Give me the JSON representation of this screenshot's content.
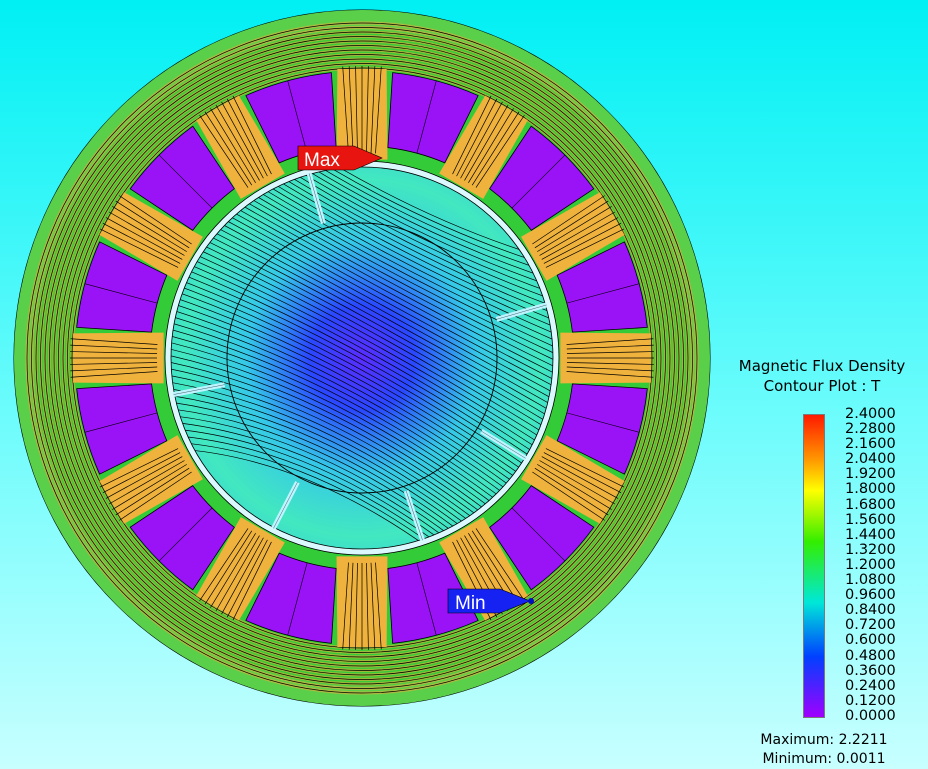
{
  "legend": {
    "title_line1": "Magnetic Flux Density",
    "title_line2": "Contour Plot : T",
    "ticks": [
      "2.4000",
      "2.2800",
      "2.1600",
      "2.0400",
      "1.9200",
      "1.8000",
      "1.6800",
      "1.5600",
      "1.4400",
      "1.3200",
      "1.2000",
      "1.0800",
      "0.9600",
      "0.8400",
      "0.7200",
      "0.6000",
      "0.4800",
      "0.3600",
      "0.2400",
      "0.1200",
      "0.0000"
    ],
    "maximum_text": "Maximum: 2.2211",
    "minimum_text": "Minimum: 0.0011"
  },
  "markers": {
    "max_label": "Max",
    "min_label": "Min",
    "max_color": "#e8140f",
    "min_color": "#1622f2"
  },
  "colors": {
    "background_top": "#00f0f4",
    "scale_high": "#ff2000",
    "scale_mid": "#27e000",
    "scale_low": "#8a00ff",
    "slot_winding": "#9a10f8",
    "stator_yoke": "#3cd62a",
    "stator_tooth": "#f0b43a",
    "rotor_field": "#33e0d0",
    "airgap_ring": "#e8fbff",
    "field_line": "#000000"
  }
}
